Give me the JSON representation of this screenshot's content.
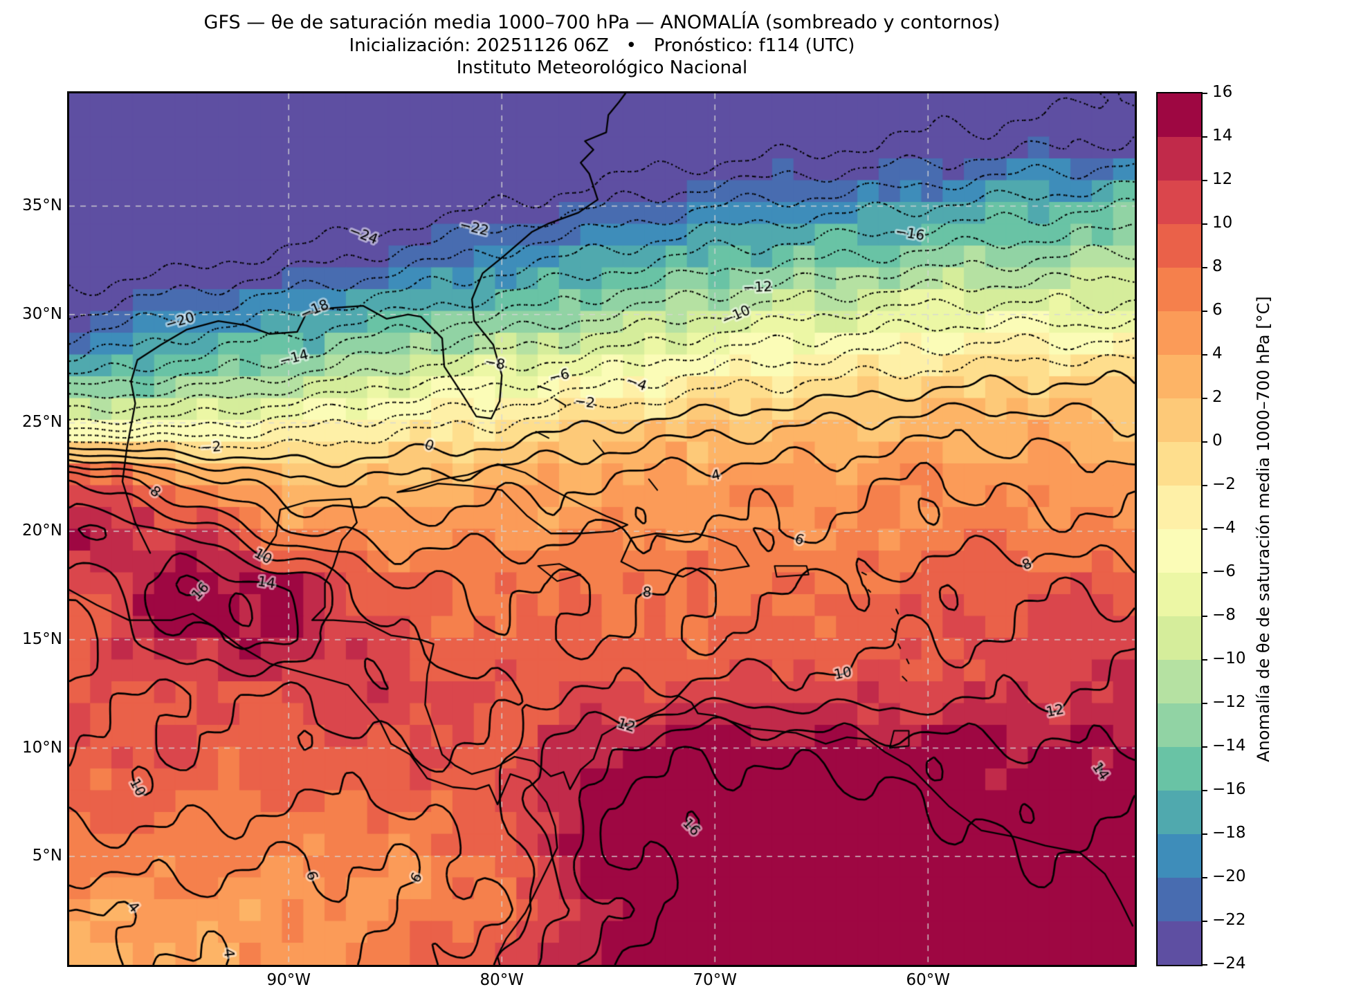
{
  "title": {
    "line1": "GFS — θe de saturación media 1000–700 hPa — ANOMALÍA (sombreado y contornos)",
    "line2": "Inicialización: 20251126 06Z   •   Pronóstico: f114 (UTC)",
    "line3": "Instituto Meteorológico Nacional"
  },
  "chart_data": {
    "type": "heatmap",
    "subtype": "filled-contour-map",
    "extent": {
      "lon_west": 100.3,
      "lon_east": 50.3,
      "lat_south": 0,
      "lat_north": 40.2
    },
    "grid_on": true,
    "x_ticks": [
      {
        "lon_w": 90,
        "label": "90°W"
      },
      {
        "lon_w": 80,
        "label": "80°W"
      },
      {
        "lon_w": 70,
        "label": "70°W"
      },
      {
        "lon_w": 60,
        "label": "60°W"
      }
    ],
    "y_ticks": [
      {
        "lat": 35,
        "label": "35°N"
      },
      {
        "lat": 30,
        "label": "30°N"
      },
      {
        "lat": 25,
        "label": "25°N"
      },
      {
        "lat": 20,
        "label": "20°N"
      },
      {
        "lat": 15,
        "label": "15°N"
      },
      {
        "lat": 10,
        "label": "10°N"
      },
      {
        "lat": 5,
        "label": "5°N"
      }
    ],
    "levels": {
      "min": -24,
      "max": 16,
      "step": 2,
      "negative_style": "dotted",
      "positive_style": "solid"
    },
    "colorbar": {
      "min": -24,
      "max": 16,
      "step": 2,
      "tick_values": [
        16,
        14,
        12,
        10,
        8,
        6,
        4,
        2,
        0,
        -2,
        -4,
        -6,
        -8,
        -10,
        -12,
        -14,
        -16,
        -18,
        -20,
        -22,
        -24
      ],
      "label": "Anomalía de θe de saturación media 1000–700 hPa [°C]",
      "colors": [
        "#5e4fa2",
        "#486cb0",
        "#3e8dba",
        "#50a9ae",
        "#69c3a5",
        "#91d3a4",
        "#b5e1a2",
        "#d5ed9b",
        "#ecf7a5",
        "#fbfcb7",
        "#fef0a7",
        "#fede8d",
        "#fdc978",
        "#fdb466",
        "#fb9b58",
        "#f5804c",
        "#ea6149",
        "#da464c",
        "#c12a4a",
        "#9e0742"
      ]
    },
    "grid": {
      "lats": [
        40,
        37.5,
        35,
        32.5,
        30,
        27.5,
        25,
        22.5,
        20,
        17.5,
        15,
        12.5,
        10,
        7.5,
        5,
        2.5,
        0
      ],
      "lons_w": [
        100,
        95,
        90,
        85,
        80,
        75,
        70,
        65,
        60,
        55,
        50
      ],
      "values": [
        [
          -36,
          -35,
          -34,
          -32,
          -31,
          -30,
          -28,
          -27,
          -26,
          -25,
          -24
        ],
        [
          -33,
          -32,
          -31,
          -29,
          -28,
          -26,
          -25,
          -24,
          -23,
          -22,
          -21
        ],
        [
          -30,
          -29,
          -27,
          -26,
          -24,
          -22,
          -20,
          -19,
          -18,
          -17,
          -16
        ],
        [
          -26,
          -25,
          -23,
          -21,
          -19,
          -17,
          -15,
          -14,
          -13,
          -12,
          -11
        ],
        [
          -22,
          -20,
          -18,
          -16,
          -14,
          -12,
          -10,
          -8,
          -7,
          -7,
          -7
        ],
        [
          -17,
          -15,
          -13,
          -10,
          -8,
          -6,
          -4,
          -3,
          -2,
          -1,
          -1
        ],
        [
          -8,
          -7,
          -5,
          -3,
          -2,
          0,
          1,
          2,
          3,
          3,
          2
        ],
        [
          10,
          5,
          2,
          2,
          3,
          4,
          5,
          5,
          6,
          5,
          5
        ],
        [
          14,
          12,
          6,
          5,
          5,
          6,
          6,
          6,
          7,
          7,
          6
        ],
        [
          10,
          16,
          14,
          8,
          8,
          8,
          8,
          8,
          9,
          10,
          9
        ],
        [
          9,
          14,
          14,
          10,
          8,
          8,
          8,
          9,
          10,
          10,
          12
        ],
        [
          10,
          10,
          10,
          12,
          10,
          10,
          11,
          11,
          11,
          12,
          12
        ],
        [
          10,
          10,
          9,
          10,
          10,
          14,
          16,
          15,
          15,
          14,
          14
        ],
        [
          9,
          9,
          8,
          8,
          10,
          16,
          17,
          17,
          16,
          15,
          16
        ],
        [
          7,
          7,
          6,
          6,
          9,
          16,
          17,
          18,
          17,
          16,
          17
        ],
        [
          4,
          5,
          5,
          6,
          8,
          14,
          17,
          17,
          17,
          17,
          17
        ],
        [
          3,
          4,
          5,
          7,
          10,
          16,
          17,
          18,
          18,
          17,
          18
        ]
      ]
    },
    "contour_labels": [
      {
        "v": -24,
        "x": 0.265,
        "y": 0.211
      },
      {
        "v": -22,
        "x": 0.376,
        "y": 0.178
      },
      {
        "v": -20,
        "x": 0.111,
        "y": 0.289
      },
      {
        "v": -18,
        "x": 0.227,
        "y": 0.235
      },
      {
        "v": -16,
        "x": 0.79,
        "y": 0.18
      },
      {
        "v": -14,
        "x": 0.192,
        "y": 0.252
      },
      {
        "v": -12,
        "x": 0.65,
        "y": 0.24
      },
      {
        "v": -10,
        "x": 0.629,
        "y": 0.27
      },
      {
        "v": -8,
        "x": 0.4,
        "y": 0.278
      },
      {
        "v": -6,
        "x": 0.452,
        "y": 0.287
      },
      {
        "v": -4,
        "x": 0.54,
        "y": 0.31
      },
      {
        "v": -2,
        "x": 0.488,
        "y": 0.325
      },
      {
        "v": -2,
        "x": 0.13,
        "y": 0.4
      },
      {
        "v": 0,
        "x": 0.35,
        "y": 0.372
      },
      {
        "v": 4,
        "x": 0.62,
        "y": 0.497
      },
      {
        "v": 4,
        "x": 0.073,
        "y": 0.93
      },
      {
        "v": 4,
        "x": 0.25,
        "y": 0.96
      },
      {
        "v": 6,
        "x": 0.201,
        "y": 0.905
      },
      {
        "v": 6,
        "x": 0.337,
        "y": 0.909
      },
      {
        "v": 6,
        "x": 0.68,
        "y": 0.526
      },
      {
        "v": 8,
        "x": 0.539,
        "y": 0.571
      },
      {
        "v": 8,
        "x": 0.938,
        "y": 0.676
      },
      {
        "v": 8,
        "x": 0.06,
        "y": 0.486
      },
      {
        "v": 10,
        "x": 0.758,
        "y": 0.74
      },
      {
        "v": 10,
        "x": 0.039,
        "y": 0.817
      },
      {
        "v": 10,
        "x": 0.158,
        "y": 0.589
      },
      {
        "v": 12,
        "x": 0.518,
        "y": 0.772
      },
      {
        "v": 12,
        "x": 0.96,
        "y": 0.861
      },
      {
        "v": 14,
        "x": 0.19,
        "y": 0.524
      },
      {
        "v": 14,
        "x": 0.923,
        "y": 0.918
      },
      {
        "v": 16,
        "x": 0.262,
        "y": 0.706
      },
      {
        "v": 16,
        "x": 0.585,
        "y": 0.851
      }
    ],
    "coastlines": [
      [
        [
          96.5,
          19.0
        ],
        [
          97.2,
          20.4
        ],
        [
          97.8,
          22.3
        ],
        [
          97.6,
          23.8
        ],
        [
          97.2,
          25.9
        ],
        [
          97.4,
          26.9
        ],
        [
          97.1,
          27.9
        ],
        [
          96.0,
          28.6
        ],
        [
          94.8,
          29.3
        ],
        [
          93.3,
          29.7
        ],
        [
          92.0,
          29.5
        ],
        [
          90.9,
          29.1
        ],
        [
          89.6,
          29.2
        ],
        [
          89.2,
          30.0
        ],
        [
          88.0,
          30.3
        ],
        [
          86.5,
          30.4
        ],
        [
          85.4,
          29.8
        ],
        [
          84.4,
          30.0
        ],
        [
          83.8,
          29.9
        ],
        [
          82.8,
          28.9
        ],
        [
          82.7,
          27.6
        ],
        [
          81.9,
          26.4
        ],
        [
          81.2,
          25.3
        ],
        [
          80.5,
          25.2
        ],
        [
          80.1,
          26.0
        ],
        [
          80.0,
          27.2
        ],
        [
          80.4,
          28.6
        ],
        [
          81.3,
          29.7
        ],
        [
          81.4,
          30.7
        ],
        [
          80.9,
          31.9
        ],
        [
          79.9,
          32.7
        ],
        [
          78.6,
          33.8
        ],
        [
          77.8,
          34.2
        ],
        [
          76.4,
          34.7
        ],
        [
          75.5,
          35.3
        ],
        [
          75.9,
          36.5
        ],
        [
          76.3,
          37.0
        ],
        [
          76.0,
          37.3
        ],
        [
          75.7,
          37.6
        ],
        [
          76.1,
          38.0
        ],
        [
          75.1,
          38.4
        ],
        [
          75.0,
          39.2
        ],
        [
          74.5,
          39.8
        ],
        [
          74.2,
          40.2
        ]
      ],
      [
        [
          100.3,
          17.3
        ],
        [
          99.0,
          16.6
        ],
        [
          97.5,
          15.9
        ],
        [
          95.5,
          15.9
        ],
        [
          94.5,
          16.2
        ],
        [
          93.5,
          15.6
        ],
        [
          92.3,
          14.7
        ],
        [
          90.9,
          13.9
        ],
        [
          89.4,
          13.5
        ],
        [
          87.9,
          13.1
        ],
        [
          87.2,
          12.9
        ],
        [
          86.6,
          12.2
        ],
        [
          85.7,
          11.2
        ],
        [
          85.2,
          10.2
        ],
        [
          84.3,
          9.7
        ],
        [
          83.5,
          8.6
        ],
        [
          82.3,
          8.2
        ],
        [
          81.2,
          8.1
        ],
        [
          80.6,
          8.3
        ],
        [
          80.2,
          7.4
        ],
        [
          79.6,
          8.8
        ],
        [
          78.7,
          8.5
        ],
        [
          77.9,
          7.5
        ],
        [
          77.5,
          6.4
        ],
        [
          77.4,
          5.4
        ],
        [
          78.2,
          3.8
        ],
        [
          78.9,
          2.4
        ],
        [
          79.8,
          1.2
        ],
        [
          80.2,
          0.4
        ],
        [
          80.1,
          0.0
        ]
      ],
      [
        [
          91.3,
          18.8
        ],
        [
          90.6,
          19.8
        ],
        [
          90.4,
          21.0
        ],
        [
          89.0,
          21.4
        ],
        [
          87.1,
          21.5
        ],
        [
          86.8,
          20.4
        ],
        [
          87.5,
          19.6
        ],
        [
          87.9,
          18.4
        ],
        [
          88.3,
          17.6
        ],
        [
          88.3,
          16.5
        ],
        [
          88.9,
          15.9
        ],
        [
          87.9,
          15.9
        ],
        [
          86.4,
          15.8
        ],
        [
          85.2,
          15.2
        ],
        [
          83.8,
          15.0
        ],
        [
          83.2,
          14.8
        ],
        [
          83.5,
          13.4
        ],
        [
          83.6,
          12.0
        ],
        [
          83.2,
          10.9
        ],
        [
          82.8,
          9.7
        ],
        [
          82.2,
          9.2
        ],
        [
          81.4,
          8.8
        ],
        [
          80.3,
          9.1
        ],
        [
          79.4,
          9.6
        ],
        [
          78.5,
          9.4
        ],
        [
          77.7,
          8.7
        ],
        [
          77.1,
          8.9
        ],
        [
          76.8,
          8.1
        ],
        [
          76.3,
          9.0
        ],
        [
          75.7,
          9.5
        ],
        [
          75.3,
          10.6
        ],
        [
          74.6,
          11.0
        ],
        [
          73.5,
          11.3
        ],
        [
          72.4,
          11.8
        ],
        [
          71.7,
          12.4
        ],
        [
          71.1,
          12.1
        ],
        [
          70.8,
          11.6
        ],
        [
          70.0,
          11.5
        ],
        [
          68.3,
          10.9
        ],
        [
          66.2,
          10.7
        ],
        [
          64.8,
          10.2
        ],
        [
          63.8,
          10.5
        ],
        [
          62.8,
          10.4
        ],
        [
          62.0,
          9.8
        ],
        [
          60.9,
          9.2
        ],
        [
          60.2,
          8.5
        ],
        [
          59.0,
          7.3
        ],
        [
          57.5,
          6.2
        ],
        [
          55.9,
          5.9
        ],
        [
          54.5,
          5.5
        ],
        [
          52.9,
          5.2
        ],
        [
          51.7,
          4.2
        ],
        [
          51.0,
          3.0
        ],
        [
          50.4,
          1.8
        ]
      ],
      [
        [
          84.9,
          21.8
        ],
        [
          83.9,
          22.1
        ],
        [
          82.8,
          22.4
        ],
        [
          81.6,
          22.6
        ],
        [
          80.2,
          23.1
        ],
        [
          78.9,
          22.7
        ],
        [
          77.6,
          21.9
        ],
        [
          76.2,
          21.2
        ],
        [
          75.1,
          20.7
        ],
        [
          74.1,
          20.3
        ],
        [
          74.8,
          20.0
        ],
        [
          76.3,
          19.9
        ],
        [
          77.7,
          19.9
        ],
        [
          78.8,
          20.7
        ],
        [
          80.0,
          21.9
        ],
        [
          81.5,
          22.1
        ],
        [
          83.0,
          22.2
        ],
        [
          84.0,
          21.9
        ],
        [
          84.9,
          21.8
        ]
      ],
      [
        [
          74.4,
          18.6
        ],
        [
          73.9,
          19.7
        ],
        [
          72.8,
          19.9
        ],
        [
          71.7,
          19.8
        ],
        [
          70.9,
          19.9
        ],
        [
          70.0,
          19.7
        ],
        [
          69.0,
          19.3
        ],
        [
          68.4,
          18.4
        ],
        [
          69.7,
          18.2
        ],
        [
          70.7,
          18.3
        ],
        [
          71.5,
          17.9
        ],
        [
          72.6,
          18.2
        ],
        [
          73.6,
          18.2
        ],
        [
          74.4,
          18.6
        ]
      ],
      [
        [
          78.3,
          18.4
        ],
        [
          77.3,
          18.5
        ],
        [
          76.3,
          18.0
        ],
        [
          77.4,
          17.7
        ],
        [
          78.3,
          18.4
        ]
      ],
      [
        [
          67.2,
          18.4
        ],
        [
          65.7,
          18.4
        ],
        [
          65.6,
          18.0
        ],
        [
          67.1,
          17.9
        ],
        [
          67.2,
          18.4
        ]
      ],
      [
        [
          78.3,
          26.7
        ],
        [
          77.7,
          26.5
        ]
      ],
      [
        [
          77.5,
          26.1
        ],
        [
          77.0,
          25.8
        ]
      ],
      [
        [
          78.4,
          24.6
        ],
        [
          77.8,
          24.3
        ]
      ],
      [
        [
          75.7,
          24.2
        ],
        [
          75.2,
          23.6
        ]
      ],
      [
        [
          73.1,
          22.4
        ],
        [
          72.7,
          21.9
        ]
      ],
      [
        [
          61.6,
          10.8
        ],
        [
          60.9,
          10.8
        ],
        [
          60.9,
          10.1
        ],
        [
          61.8,
          10.0
        ],
        [
          61.6,
          10.8
        ]
      ],
      [
        [
          61.5,
          16.4
        ],
        [
          61.4,
          16.2
        ]
      ],
      [
        [
          61.7,
          15.5
        ],
        [
          61.5,
          15.3
        ]
      ],
      [
        [
          61.4,
          14.8
        ],
        [
          61.3,
          14.6
        ]
      ],
      [
        [
          61.0,
          14.1
        ],
        [
          60.9,
          13.9
        ]
      ],
      [
        [
          61.2,
          13.3
        ],
        [
          61.0,
          13.1
        ]
      ],
      [
        [
          62.8,
          17.3
        ],
        [
          62.7,
          17.2
        ]
      ],
      [
        [
          63.1,
          18.1
        ],
        [
          62.9,
          18.0
        ]
      ]
    ]
  }
}
